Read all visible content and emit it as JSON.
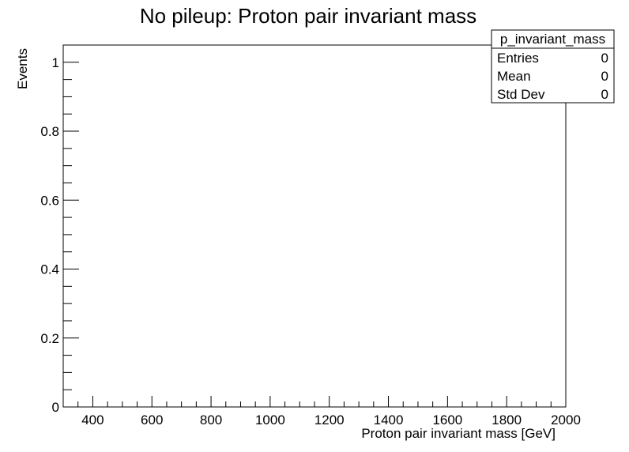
{
  "chart_data": {
    "type": "bar",
    "title": "No pileup:  Proton pair invariant mass",
    "xlabel": "Proton pair invariant mass [GeV]",
    "ylabel": "Events",
    "xlim": [
      300,
      2000
    ],
    "ylim": [
      0,
      1.05
    ],
    "x_ticks": [
      400,
      600,
      800,
      1000,
      1200,
      1400,
      1600,
      1800,
      2000
    ],
    "y_ticks": [
      0,
      0.2,
      0.4,
      0.6,
      0.8,
      1
    ],
    "y_tick_labels": [
      "0",
      "0.2",
      "0.4",
      "0.6",
      "0.8",
      "1"
    ],
    "x_minor_step": 50,
    "y_minor_step": 0.05,
    "bins": [],
    "grid": false,
    "stats_box": {
      "name": "p_invariant_mass",
      "rows": [
        {
          "label": "Entries",
          "value": "0"
        },
        {
          "label": "Mean",
          "value": "0"
        },
        {
          "label": "Std Dev",
          "value": "0"
        }
      ]
    }
  }
}
